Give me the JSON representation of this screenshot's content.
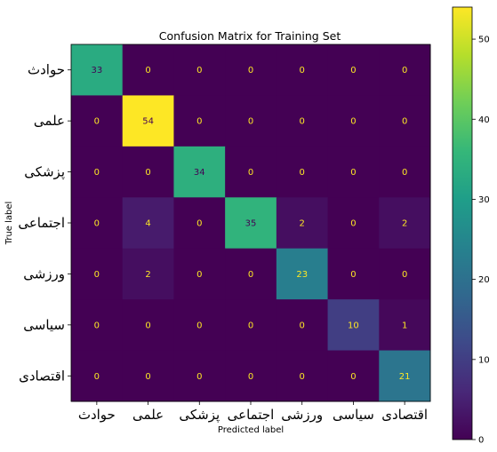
{
  "chart_data": {
    "type": "heatmap",
    "title": "Confusion Matrix for Training Set",
    "xlabel": "Predicted label",
    "ylabel": "True label",
    "labels": [
      "حوادث",
      "علمی",
      "پزشکی",
      "اجتماعی",
      "ورزشی",
      "سیاسی",
      "اقتصادی"
    ],
    "matrix": [
      [
        33,
        0,
        0,
        0,
        0,
        0,
        0
      ],
      [
        0,
        54,
        0,
        0,
        0,
        0,
        0
      ],
      [
        0,
        0,
        34,
        0,
        0,
        0,
        0
      ],
      [
        0,
        4,
        0,
        35,
        2,
        0,
        2
      ],
      [
        0,
        2,
        0,
        0,
        23,
        0,
        0
      ],
      [
        0,
        0,
        0,
        0,
        0,
        10,
        1
      ],
      [
        0,
        0,
        0,
        0,
        0,
        0,
        21
      ]
    ],
    "colorbar": {
      "colormap": "viridis",
      "range": [
        0,
        54
      ],
      "ticks": [
        0,
        10,
        20,
        30,
        40,
        50
      ]
    },
    "text_colors": {
      "dark_cell": "#fde725",
      "light_cell": "#440154"
    }
  }
}
